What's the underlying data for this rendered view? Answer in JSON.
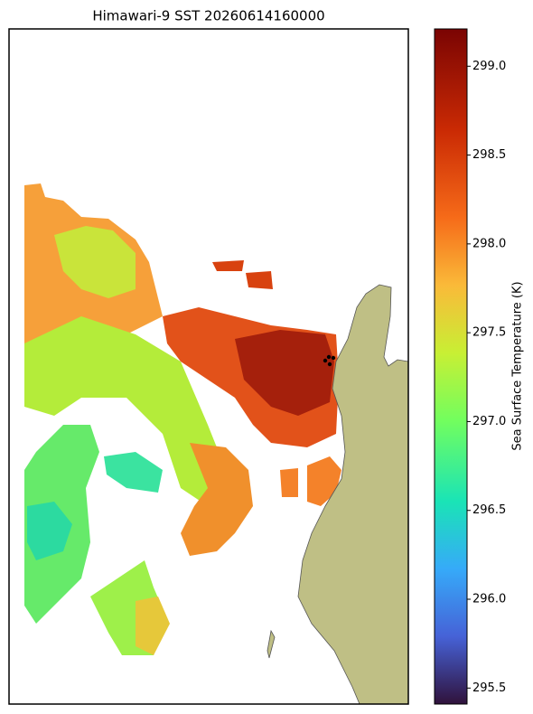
{
  "map": {
    "title": "Himawari-9 SST 20260614160000",
    "colorbar": {
      "label": "Sea Surface Temperature (K)",
      "lim": [
        295.41,
        299.21
      ],
      "ticks": [
        {
          "value": 295.5,
          "label": "295.5"
        },
        {
          "value": 296,
          "label": "296.0"
        },
        {
          "value": 296.5,
          "label": "296.5"
        },
        {
          "value": 297,
          "label": "297.0"
        },
        {
          "value": 297.5,
          "label": "297.5"
        },
        {
          "value": 298,
          "label": "298.0"
        },
        {
          "value": 298.5,
          "label": "298.5"
        },
        {
          "value": 299,
          "label": "299.0"
        }
      ]
    }
  }
}
